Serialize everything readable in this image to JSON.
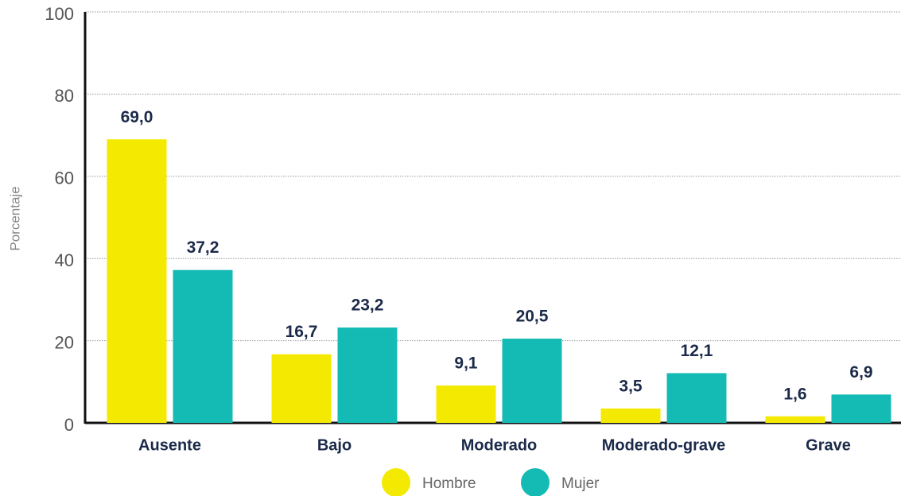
{
  "chart_data": {
    "type": "bar",
    "categories": [
      "Ausente",
      "Bajo",
      "Moderado",
      "Moderado-grave",
      "Grave"
    ],
    "series": [
      {
        "name": "Hombre",
        "color": "#f4e900",
        "values": [
          69.0,
          16.7,
          9.1,
          3.5,
          1.6
        ],
        "value_labels": [
          "69,0",
          "16,7",
          "9,1",
          "3,5",
          "1,6"
        ]
      },
      {
        "name": "Mujer",
        "color": "#14bbb5",
        "values": [
          37.2,
          23.2,
          20.5,
          12.1,
          6.9
        ],
        "value_labels": [
          "37,2",
          "23,2",
          "20,5",
          "12,1",
          "6,9"
        ]
      }
    ],
    "ylabel": "Porcentaje",
    "ylim": [
      0,
      100
    ],
    "yticks": [
      0,
      20,
      40,
      60,
      80,
      100
    ],
    "grid": true,
    "legend": "bottom"
  }
}
